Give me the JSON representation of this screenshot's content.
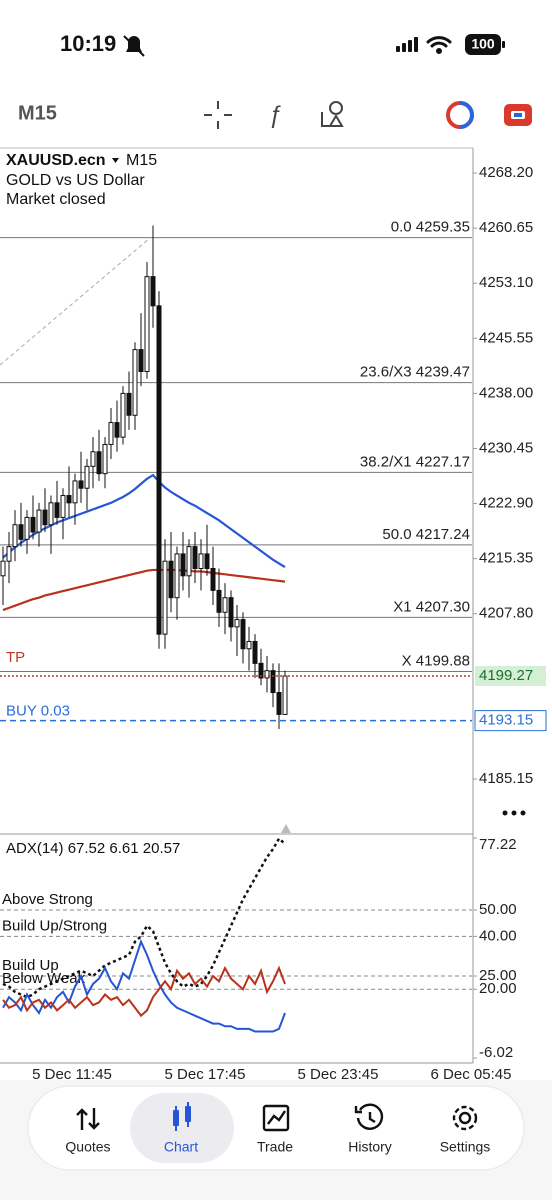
{
  "status_bar": {
    "time": "10:19",
    "battery": "100"
  },
  "toolbar": {
    "timeframe": "M15"
  },
  "chart_data": [
    {
      "type": "candlestick",
      "symbol": "XAUUSD.ecn",
      "timeframe": "M15",
      "description": "GOLD vs US Dollar",
      "status": "Market closed",
      "candles": [
        [
          4213,
          4217,
          4209,
          4215
        ],
        [
          4215,
          4219,
          4212,
          4217
        ],
        [
          4217,
          4222,
          4215,
          4220
        ],
        [
          4220,
          4223,
          4217,
          4218
        ],
        [
          4218,
          4222,
          4216,
          4221
        ],
        [
          4221,
          4224,
          4218,
          4219
        ],
        [
          4219,
          4223,
          4217,
          4222
        ],
        [
          4222,
          4225,
          4219,
          4220
        ],
        [
          4220,
          4224,
          4216,
          4223
        ],
        [
          4223,
          4226,
          4220,
          4221
        ],
        [
          4221,
          4225,
          4218,
          4224
        ],
        [
          4224,
          4228,
          4221,
          4223
        ],
        [
          4223,
          4227,
          4220,
          4226
        ],
        [
          4226,
          4230,
          4223,
          4225
        ],
        [
          4225,
          4229,
          4222,
          4228
        ],
        [
          4228,
          4232,
          4225,
          4230
        ],
        [
          4230,
          4233,
          4226,
          4227
        ],
        [
          4227,
          4232,
          4225,
          4231
        ],
        [
          4231,
          4236,
          4229,
          4234
        ],
        [
          4234,
          4237,
          4230,
          4232
        ],
        [
          4232,
          4239,
          4231,
          4238
        ],
        [
          4238,
          4241,
          4233,
          4235
        ],
        [
          4235,
          4245,
          4233,
          4244
        ],
        [
          4244,
          4249,
          4239,
          4241
        ],
        [
          4241,
          4256,
          4240,
          4254
        ],
        [
          4254,
          4261,
          4247,
          4250
        ],
        [
          4250,
          4252,
          4203,
          4205
        ],
        [
          4205,
          4218,
          4203,
          4215
        ],
        [
          4215,
          4219,
          4208,
          4210
        ],
        [
          4210,
          4217,
          4207,
          4216
        ],
        [
          4216,
          4219,
          4211,
          4213
        ],
        [
          4213,
          4218,
          4210,
          4217
        ],
        [
          4217,
          4219,
          4212,
          4214
        ],
        [
          4214,
          4218,
          4211,
          4216
        ],
        [
          4216,
          4220,
          4213,
          4214
        ],
        [
          4214,
          4217,
          4209,
          4211
        ],
        [
          4211,
          4214,
          4206,
          4208
        ],
        [
          4208,
          4212,
          4205,
          4210
        ],
        [
          4210,
          4211,
          4204,
          4206
        ],
        [
          4206,
          4209,
          4202,
          4207
        ],
        [
          4207,
          4208,
          4201,
          4203
        ],
        [
          4203,
          4206,
          4200,
          4204
        ],
        [
          4204,
          4205,
          4199,
          4201
        ],
        [
          4201,
          4203,
          4198,
          4199
        ],
        [
          4199,
          4202,
          4197,
          4200
        ],
        [
          4200,
          4201,
          4195,
          4197
        ],
        [
          4197,
          4201,
          4192,
          4194
        ],
        [
          4194,
          4200,
          4194,
          4199.27
        ]
      ],
      "moving_averages": [
        {
          "color": "#2456d6",
          "values": [
            4215.5,
            4216.2,
            4216.9,
            4217.5,
            4218.1,
            4218.6,
            4219.1,
            4219.5,
            4219.9,
            4220.3,
            4220.6,
            4220.9,
            4221.2,
            4221.5,
            4221.8,
            4222.1,
            4222.4,
            4222.7,
            4223.0,
            4223.4,
            4223.8,
            4224.3,
            4224.9,
            4225.6,
            4226.3,
            4226.8,
            4225.9,
            4225.1,
            4224.5,
            4224.0,
            4223.5,
            4223.0,
            4222.6,
            4222.1,
            4221.6,
            4221.1,
            4220.6,
            4220.0,
            4219.4,
            4218.8,
            4218.2,
            4217.6,
            4217.0,
            4216.4,
            4215.8,
            4215.2,
            4214.7,
            4214.2
          ]
        },
        {
          "color": "#b8321c",
          "values": [
            4208.3,
            4208.6,
            4208.9,
            4209.2,
            4209.5,
            4209.8,
            4210.0,
            4210.3,
            4210.5,
            4210.7,
            4210.9,
            4211.1,
            4211.3,
            4211.5,
            4211.7,
            4211.9,
            4212.1,
            4212.3,
            4212.5,
            4212.7,
            4212.9,
            4213.1,
            4213.3,
            4213.5,
            4213.7,
            4213.8,
            4213.8,
            4213.8,
            4213.8,
            4213.8,
            4213.7,
            4213.7,
            4213.6,
            4213.6,
            4213.5,
            4213.4,
            4213.3,
            4213.2,
            4213.1,
            4213.0,
            4212.9,
            4212.8,
            4212.7,
            4212.6,
            4212.5,
            4212.4,
            4212.3,
            4212.2
          ]
        }
      ],
      "ylim": [
        4178.16,
        4271.63
      ],
      "yticks": [
        {
          "value": 4268.2,
          "label": "4268.20"
        },
        4260.65,
        {
          "value": 4253.1,
          "label": "4253.10"
        },
        4245.55,
        {
          "value": 4238,
          "label": "4238.00"
        },
        4230.45,
        {
          "value": 4222.9,
          "label": "4222.90"
        },
        4215.35,
        {
          "value": 4207.8,
          "label": "4207.80"
        },
        4185.15
      ],
      "fib_levels": [
        {
          "name": "0.0",
          "price": 4259.35
        },
        {
          "name": "23.6/X3",
          "price": 4239.47
        },
        {
          "name": "38.2/X1",
          "price": 4227.17
        },
        {
          "name": "50.0",
          "price": 4217.24
        },
        {
          "name": "X1",
          "price": {
            "value": 4207.3,
            "label": "4207.30"
          }
        },
        {
          "name": "X",
          "price": 4199.88
        }
      ],
      "take_profit": {
        "label": "TP"
      },
      "bid": 4199.27,
      "order": {
        "label": "BUY 0.03",
        "price": 4193.15
      },
      "time_labels": [
        "5 Dec 11:45",
        "5 Dec 17:45",
        "5 Dec 23:45",
        "6 Dec 05:45"
      ]
    },
    {
      "type": "line",
      "title": "ADX(14)",
      "readings": [
        67.52,
        6.61,
        20.57
      ],
      "series": [
        {
          "color": "#111111",
          "values": [
            22,
            21,
            19,
            18,
            17,
            18,
            20,
            21,
            22,
            23,
            24,
            25,
            26,
            27,
            26,
            25,
            27,
            29,
            30,
            31,
            32,
            33,
            38,
            40,
            44,
            42,
            36,
            30,
            26,
            23,
            21,
            22,
            21,
            22,
            25,
            29,
            34,
            39,
            44,
            49,
            54,
            58,
            62,
            66,
            70,
            73,
            77,
            75
          ]
        },
        {
          "color": "#2456d6",
          "values": [
            13,
            17,
            15,
            12,
            18,
            14,
            11,
            16,
            13,
            17,
            19,
            15,
            21,
            25,
            18,
            22,
            24,
            28,
            23,
            20,
            26,
            24,
            31,
            38,
            33,
            27,
            22,
            18,
            15,
            13,
            12,
            11,
            10,
            9,
            8,
            7,
            7,
            6,
            6,
            5,
            5,
            5,
            4,
            4,
            4,
            4,
            5,
            11
          ]
        },
        {
          "color": "#b8321c",
          "values": [
            16,
            13,
            14,
            17,
            12,
            15,
            16,
            13,
            15,
            12,
            14,
            16,
            13,
            15,
            17,
            14,
            15,
            18,
            16,
            17,
            14,
            16,
            13,
            10,
            12,
            17,
            20,
            23,
            20,
            27,
            24,
            26,
            22,
            24,
            21,
            25,
            23,
            28,
            24,
            22,
            20,
            25,
            22,
            27,
            19,
            23,
            28,
            22
          ]
        }
      ],
      "ylim": [
        -6.02,
        77.22
      ],
      "yticks": [
        77.22,
        {
          "value": 50,
          "label": "50.00"
        },
        {
          "value": 40,
          "label": "40.00"
        },
        {
          "value": 25,
          "label": "25.00"
        },
        {
          "value": 20,
          "label": "20.00"
        },
        -6.02
      ],
      "levels": [
        {
          "name": "Above Strong",
          "value": 50
        },
        {
          "name": "Build Up/Strong",
          "value": 40
        },
        {
          "name": "Build Up",
          "value": 25
        },
        {
          "name": "Below Weak",
          "value": 20
        }
      ]
    }
  ],
  "nav": [
    {
      "label": "Quotes"
    },
    {
      "label": "Chart"
    },
    {
      "label": "Trade"
    },
    {
      "label": "History"
    },
    {
      "label": "Settings"
    }
  ]
}
